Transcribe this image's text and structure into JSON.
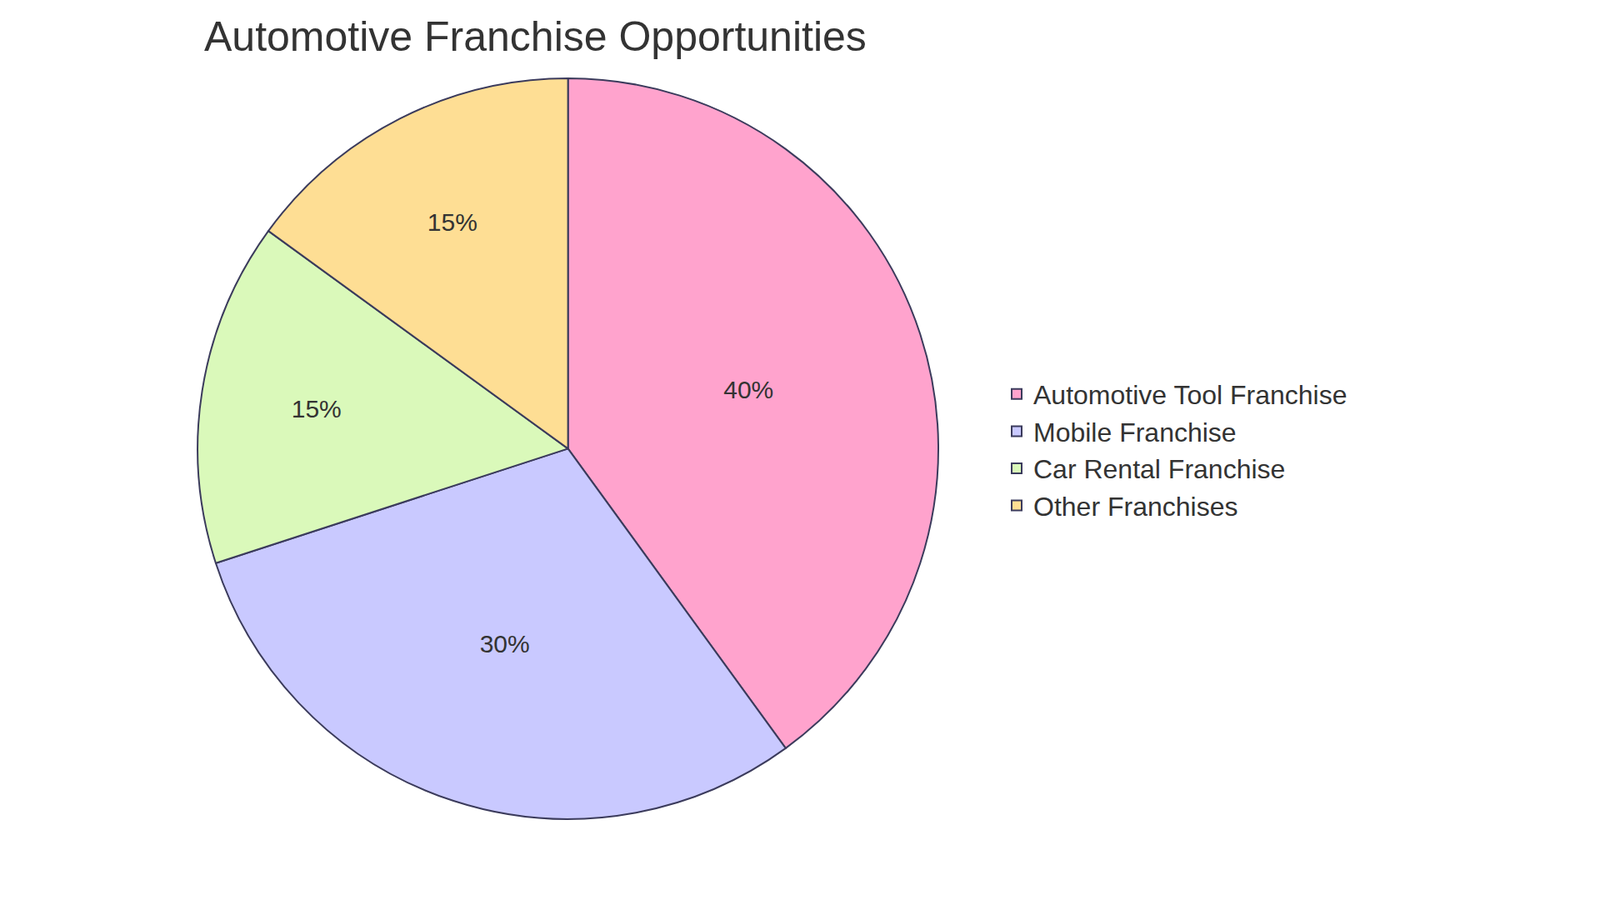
{
  "chart_data": {
    "type": "pie",
    "title": "Automotive Franchise Opportunities",
    "categories": [
      "Automotive Tool Franchise",
      "Mobile Franchise",
      "Car Rental Franchise",
      "Other Franchises"
    ],
    "values": [
      40,
      30,
      15,
      15
    ],
    "value_labels": [
      "40%",
      "30%",
      "15%",
      "15%"
    ],
    "colors": [
      "#ffa3cd",
      "#c9c9ff",
      "#daf9ba",
      "#fede94"
    ],
    "data_labels": true,
    "legend": "right"
  }
}
